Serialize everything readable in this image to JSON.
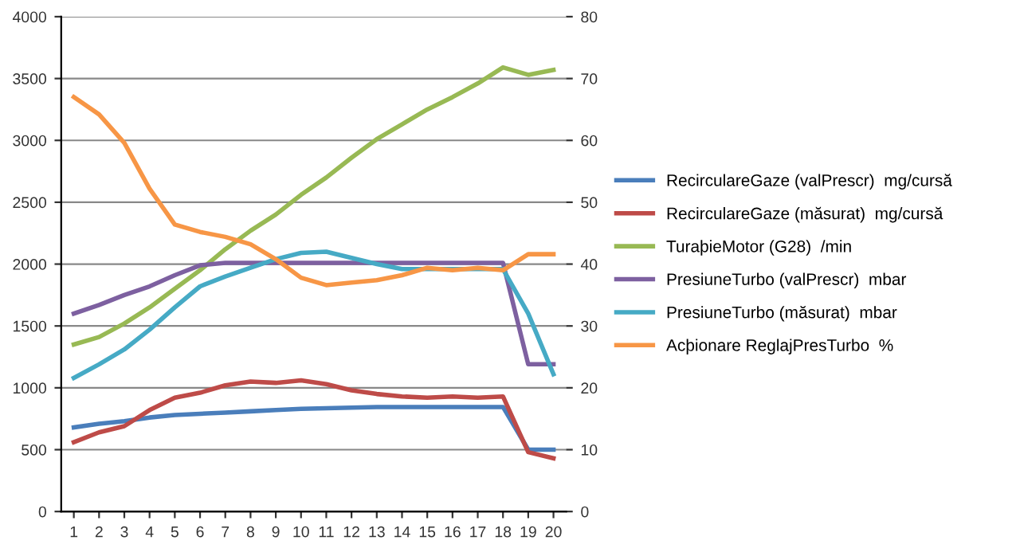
{
  "chart_data": {
    "type": "line",
    "categories": [
      "1",
      "2",
      "3",
      "4",
      "5",
      "6",
      "7",
      "8",
      "9",
      "10",
      "11",
      "12",
      "13",
      "14",
      "15",
      "16",
      "17",
      "18",
      "19",
      "20"
    ],
    "ylim": [
      0,
      4000
    ],
    "yticks": [
      0,
      500,
      1000,
      1500,
      2000,
      2500,
      3000,
      3500,
      4000
    ],
    "y2lim": [
      0,
      80
    ],
    "y2ticks": [
      0,
      10,
      20,
      30,
      40,
      50,
      60,
      70,
      80
    ],
    "grid": "y",
    "legend": "right",
    "marker": "none",
    "line_style": "solid",
    "series": [
      {
        "name": "RecirculareGaze (valPrescr)  mg/cursă",
        "color": "#4a7ebb",
        "values": [
          680,
          710,
          730,
          760,
          780,
          790,
          800,
          810,
          820,
          830,
          835,
          840,
          845,
          845,
          845,
          845,
          845,
          845,
          500,
          500
        ]
      },
      {
        "name": "RecirculareGaze (măsurat)  mg/cursă",
        "color": "#be4b48",
        "values": [
          560,
          640,
          690,
          820,
          920,
          960,
          1020,
          1050,
          1040,
          1060,
          1030,
          980,
          950,
          930,
          920,
          930,
          920,
          930,
          480,
          430
        ]
      },
      {
        "name": "TuraþieMotor (G28)  /min",
        "color": "#98b954",
        "values": [
          1350,
          1410,
          1520,
          1650,
          1800,
          1950,
          2120,
          2270,
          2400,
          2560,
          2700,
          2860,
          3010,
          3130,
          3250,
          3350,
          3460,
          3590,
          3530,
          3570
        ]
      },
      {
        "name": "PresiuneTurbo (valPrescr)  mbar",
        "color": "#7d60a0",
        "values": [
          1600,
          1670,
          1750,
          1820,
          1910,
          1990,
          2010,
          2010,
          2010,
          2010,
          2010,
          2010,
          2010,
          2010,
          2010,
          2010,
          2010,
          2010,
          1190,
          1190
        ]
      },
      {
        "name": "PresiuneTurbo (măsurat)  mbar",
        "color": "#46aac5",
        "values": [
          1080,
          1190,
          1310,
          1470,
          1650,
          1820,
          1900,
          1970,
          2040,
          2090,
          2100,
          2050,
          2000,
          1960,
          1960,
          1960,
          1960,
          1960,
          1600,
          1110
        ]
      },
      {
        "name": "Acþionare ReglajPresTurbo  %",
        "color": "#f79646",
        "axis": "y2",
        "values": [
          67,
          64.2,
          59.6,
          52.2,
          46.4,
          45.2,
          44.4,
          43.2,
          40.8,
          37.8,
          36.6,
          37,
          37.4,
          38.2,
          39.4,
          39,
          39.4,
          39,
          41.6,
          41.6
        ]
      }
    ]
  }
}
